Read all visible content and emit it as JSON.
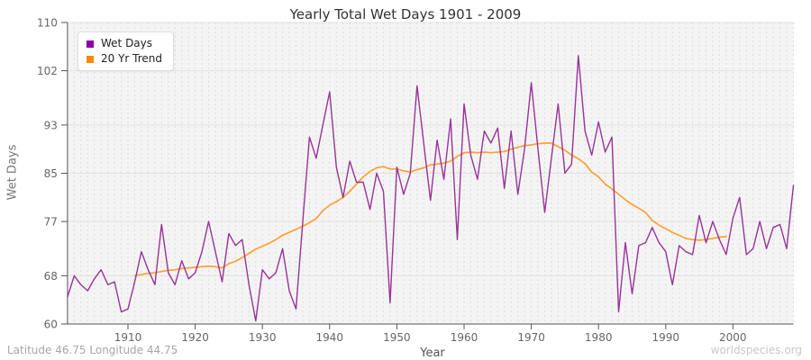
{
  "title": "Yearly Total Wet Days 1901 - 2009",
  "footer": {
    "left": "Latitude 46.75 Longitude 44.75",
    "right": "worldspecies.org"
  },
  "legend": [
    {
      "label": "Wet Days",
      "color": "#8800AA"
    },
    {
      "label": "20 Yr Trend",
      "color": "#FF8800"
    }
  ],
  "chart_data": {
    "type": "line",
    "title": "Yearly Total Wet Days 1901 - 2009",
    "xlabel": "Year",
    "ylabel": "Wet Days",
    "xlim": [
      1901,
      2009
    ],
    "ylim": [
      60,
      110
    ],
    "x_ticks": [
      1910,
      1920,
      1930,
      1940,
      1950,
      1960,
      1970,
      1980,
      1990,
      2000
    ],
    "y_ticks": [
      60,
      68,
      77,
      85,
      93,
      102,
      110
    ],
    "grid": true,
    "legend_position": "top-left",
    "colors": {
      "plot_bg": "#f4f4f4",
      "grid_v": "#dcdcdc",
      "grid_h": "#e2e2e2",
      "axis": "#555555"
    },
    "series": [
      {
        "name": "Wet Days",
        "line_color": "#993399",
        "width": 1.4,
        "x_start": 1901,
        "values": [
          64.5,
          68,
          66.5,
          65.5,
          67.5,
          69,
          66.5,
          67,
          62,
          62.5,
          67,
          72,
          69,
          66.5,
          76.5,
          68.5,
          66.5,
          70.5,
          67.5,
          68.5,
          72,
          77,
          72,
          67,
          75,
          73,
          74,
          66.5,
          60.5,
          69,
          67.5,
          68.5,
          72.5,
          65.5,
          62.5,
          77,
          91,
          87.5,
          93,
          98.5,
          86,
          81,
          87,
          83.5,
          83.5,
          79,
          85,
          82,
          63.5,
          86,
          81.5,
          85,
          99.5,
          90,
          80.5,
          90.5,
          84,
          94,
          74,
          96.5,
          88,
          84,
          92,
          90,
          92.5,
          82.5,
          92,
          81.5,
          89,
          100,
          89,
          78.5,
          87.5,
          96.5,
          85,
          86.5,
          104.5,
          92,
          88,
          93.5,
          88.5,
          91,
          62,
          73.5,
          65,
          73,
          73.5,
          76,
          73.5,
          72,
          66.5,
          73,
          72,
          71.5,
          78,
          73.5,
          77,
          74,
          71.5,
          77.5,
          81,
          71.5,
          72.5,
          77,
          72.5,
          76,
          76.5,
          72.5,
          83
        ]
      },
      {
        "name": "20 Yr Trend",
        "line_color": "#FFA033",
        "width": 1.7,
        "x_start": 1911,
        "values": [
          68,
          68.2,
          68.4,
          68.5,
          68.7,
          68.9,
          69,
          69.2,
          69.3,
          69.4,
          69.5,
          69.6,
          69.5,
          69.3,
          70,
          70.4,
          71,
          71.7,
          72.4,
          72.9,
          73.4,
          74,
          74.7,
          75.2,
          75.7,
          76.2,
          76.8,
          77.5,
          78.8,
          79.7,
          80.3,
          81,
          82,
          83.2,
          84.4,
          85.3,
          85.9,
          86.1,
          85.7,
          85.7,
          85.4,
          85.2,
          85.6,
          85.9,
          86.4,
          86.5,
          86.7,
          87,
          87.8,
          88.4,
          88.5,
          88.4,
          88.5,
          88.4,
          88.5,
          88.6,
          89,
          89.3,
          89.6,
          89.7,
          89.9,
          90,
          90,
          89.4,
          88.8,
          88,
          87.4,
          86.6,
          85.2,
          84.4,
          83.2,
          82.4,
          81.5,
          80.6,
          79.8,
          79.2,
          78.5,
          77.2,
          76.4,
          75.8,
          75.2,
          74.7,
          74.2,
          74,
          73.9,
          74,
          74.2,
          74.4,
          74.5
        ]
      }
    ]
  }
}
